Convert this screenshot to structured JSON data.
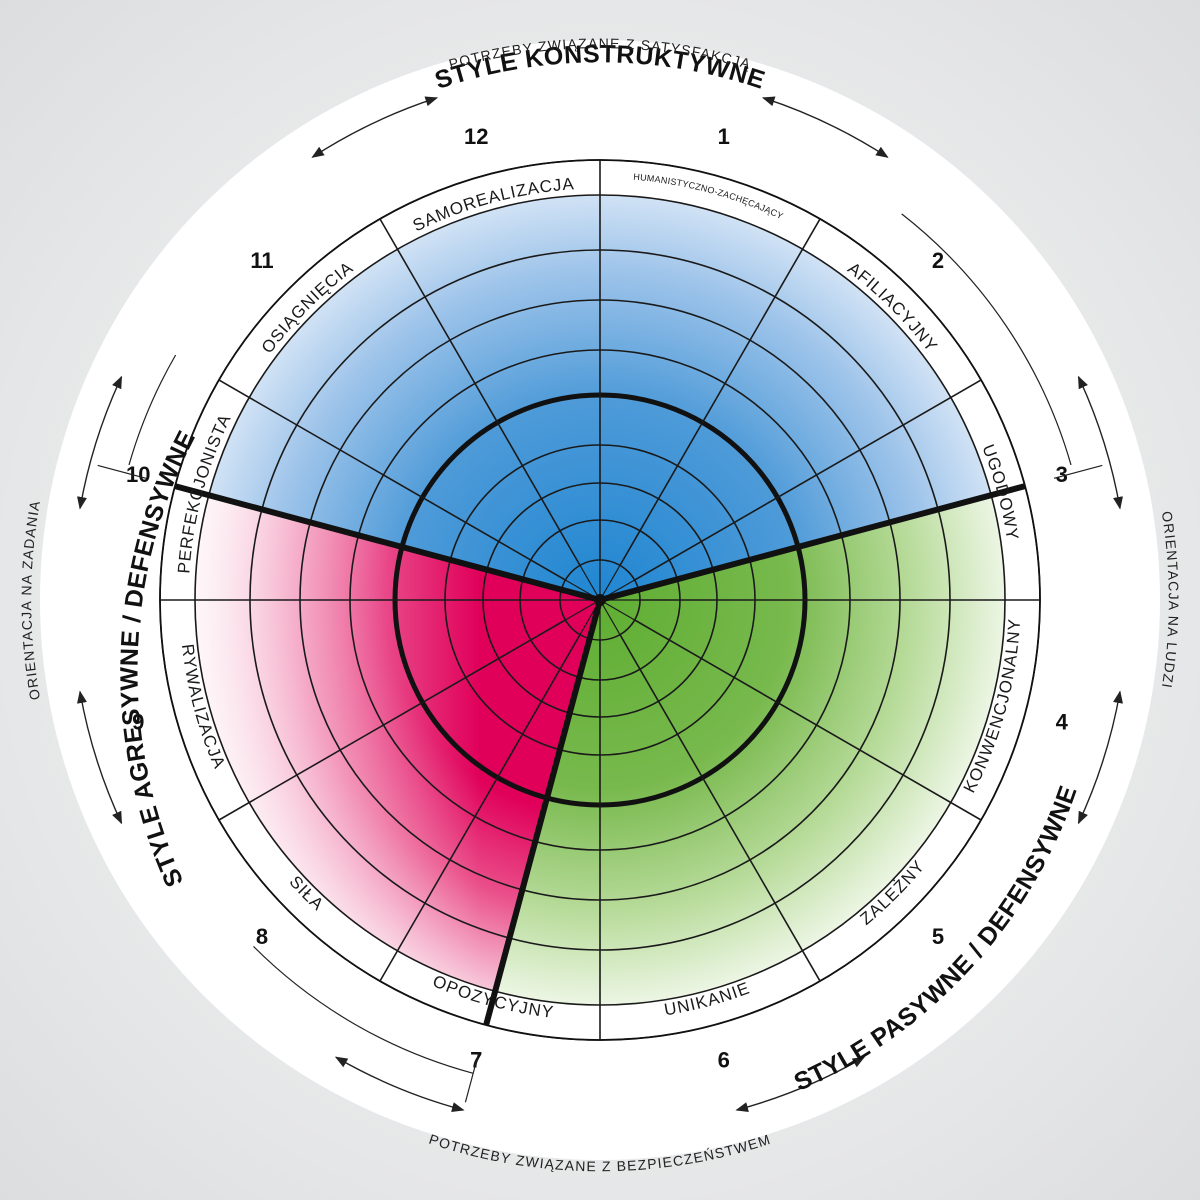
{
  "diagram": {
    "segments": [
      {
        "num": "1",
        "label": "HUMANISTYCZNO-ZACHĘCAJĄCY",
        "group": "constructive"
      },
      {
        "num": "2",
        "label": "AFILIACYJNY",
        "group": "constructive"
      },
      {
        "num": "3",
        "label": "UGODOWY",
        "group": "passive"
      },
      {
        "num": "4",
        "label": "KONWENCJONALNY",
        "group": "passive"
      },
      {
        "num": "5",
        "label": "ZALEŻNY",
        "group": "passive"
      },
      {
        "num": "6",
        "label": "UNIKANIE",
        "group": "passive"
      },
      {
        "num": "7",
        "label": "OPOZYCYJNY",
        "group": "aggressive"
      },
      {
        "num": "8",
        "label": "SIŁA",
        "group": "aggressive"
      },
      {
        "num": "9",
        "label": "RYWALIZACJA",
        "group": "aggressive"
      },
      {
        "num": "10",
        "label": "PERFEKCJONISTA",
        "group": "aggressive"
      },
      {
        "num": "11",
        "label": "OSIĄGNIĘCIA",
        "group": "constructive"
      },
      {
        "num": "12",
        "label": "SAMOREALIZACJA",
        "group": "constructive"
      }
    ],
    "style_groups": {
      "constructive": "STYLE KONSTRUKTYWNE",
      "passive": "STYLE PASYWNE / DEFENSYWNE",
      "aggressive": "STYLE AGRESYWNE / DEFENSYWNE"
    },
    "orientations": {
      "top": "POTRZEBY ZWIĄZANE Z SATYSFAKCJĄ",
      "bottom": "POTRZEBY ZWIĄZANE Z BEZPIECZEŃSTWEM",
      "left": "ORIENTACJA NA ZADANIA",
      "right": "ORIENTACJA NA LUDZI"
    },
    "colors": {
      "constructive": "#3b8fd4",
      "passive": "#6cb33f",
      "aggressive": "#e0005a",
      "outline": "#111111",
      "disc": "#ffffff"
    }
  }
}
